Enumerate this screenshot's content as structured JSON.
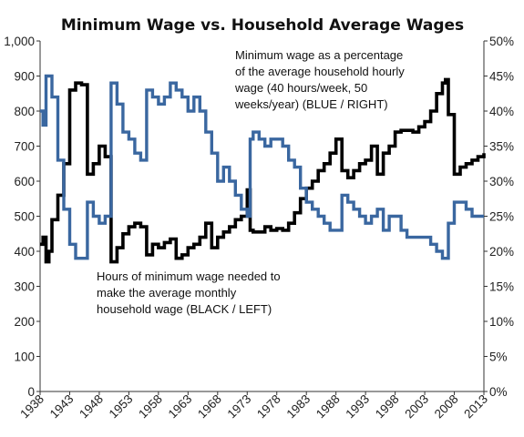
{
  "chart_data": {
    "type": "line",
    "title": "Minimum Wage vs. Household Average Wages",
    "xlabel": "",
    "ylabel_left": "",
    "ylabel_right": "",
    "xlim": [
      1938,
      2013
    ],
    "ylim_left": [
      0,
      1000
    ],
    "ylim_right": [
      0,
      0.5
    ],
    "grid": false,
    "legend": "none",
    "x_ticks": [
      "1938",
      "1943",
      "1948",
      "1953",
      "1958",
      "1963",
      "1968",
      "1973",
      "1978",
      "1983",
      "1988",
      "1993",
      "1998",
      "2003",
      "2008",
      "2013"
    ],
    "y_left_ticks": [
      "0",
      "100",
      "200",
      "300",
      "400",
      "500",
      "600",
      "700",
      "800",
      "900",
      "1,000"
    ],
    "y_right_ticks": [
      "0%",
      "5%",
      "10%",
      "15%",
      "20%",
      "25%",
      "30%",
      "35%",
      "40%",
      "45%",
      "50%"
    ],
    "annotations": {
      "blue": [
        "Minimum wage as a percentage",
        "of the average household hourly",
        "wage (40 hours/week, 50",
        "weeks/year) (BLUE / RIGHT)"
      ],
      "black": [
        "Hours of minimum wage needed to",
        "make the average monthly",
        "household wage (BLACK / LEFT)"
      ]
    },
    "series": [
      {
        "axis": "left",
        "color": "#000000",
        "x": [
          1938,
          1938.5,
          1939,
          1939.5,
          1940,
          1941,
          1942,
          1943,
          1944,
          1945,
          1946,
          1947,
          1948,
          1949,
          1950,
          1951,
          1952,
          1953,
          1954,
          1955,
          1956,
          1957,
          1958,
          1959,
          1960,
          1961,
          1962,
          1963,
          1964,
          1965,
          1966,
          1967,
          1968,
          1969,
          1970,
          1971,
          1972,
          1973,
          1973.5,
          1974,
          1975,
          1976,
          1977,
          1978,
          1979,
          1980,
          1981,
          1982,
          1983,
          1984,
          1985,
          1986,
          1987,
          1988,
          1989,
          1990,
          1991,
          1992,
          1993,
          1994,
          1995,
          1996,
          1997,
          1998,
          1999,
          2000,
          2001,
          2002,
          2003,
          2004,
          2005,
          2006,
          2006.5,
          2007,
          2008,
          2009,
          2010,
          2011,
          2012,
          2013
        ],
        "values": [
          420,
          440,
          370,
          400,
          490,
          560,
          650,
          860,
          880,
          875,
          620,
          650,
          700,
          670,
          370,
          410,
          450,
          470,
          480,
          470,
          390,
          420,
          410,
          425,
          435,
          380,
          390,
          410,
          420,
          440,
          480,
          410,
          440,
          455,
          470,
          490,
          500,
          575,
          460,
          455,
          455,
          470,
          460,
          465,
          460,
          480,
          510,
          550,
          580,
          600,
          630,
          650,
          680,
          720,
          630,
          610,
          630,
          650,
          660,
          700,
          620,
          680,
          700,
          740,
          745,
          745,
          740,
          755,
          770,
          800,
          850,
          880,
          890,
          790,
          620,
          640,
          650,
          660,
          670,
          680
        ]
      },
      {
        "axis": "right",
        "color": "#3a67a0",
        "x": [
          1938,
          1938.5,
          1939,
          1940,
          1941,
          1942,
          1943,
          1944,
          1945,
          1946,
          1947,
          1948,
          1949,
          1950,
          1951,
          1952,
          1953,
          1954,
          1955,
          1956,
          1957,
          1958,
          1959,
          1960,
          1961,
          1962,
          1963,
          1964,
          1965,
          1966,
          1967,
          1968,
          1969,
          1970,
          1971,
          1972,
          1973,
          1973.5,
          1974,
          1975,
          1976,
          1977,
          1978,
          1979,
          1980,
          1981,
          1982,
          1983,
          1984,
          1985,
          1986,
          1987,
          1988,
          1989,
          1990,
          1991,
          1992,
          1993,
          1994,
          1995,
          1996,
          1997,
          1998,
          1999,
          2000,
          2001,
          2002,
          2003,
          2004,
          2005,
          2006,
          2006.5,
          2007,
          2008,
          2009,
          2010,
          2011,
          2012,
          2013
        ],
        "values": [
          0.4,
          0.38,
          0.45,
          0.42,
          0.33,
          0.26,
          0.21,
          0.19,
          0.19,
          0.27,
          0.25,
          0.24,
          0.25,
          0.44,
          0.41,
          0.37,
          0.36,
          0.34,
          0.33,
          0.43,
          0.42,
          0.41,
          0.42,
          0.44,
          0.43,
          0.42,
          0.4,
          0.42,
          0.4,
          0.37,
          0.34,
          0.3,
          0.32,
          0.3,
          0.28,
          0.26,
          0.25,
          0.36,
          0.37,
          0.36,
          0.35,
          0.36,
          0.36,
          0.35,
          0.33,
          0.32,
          0.29,
          0.27,
          0.26,
          0.25,
          0.24,
          0.23,
          0.23,
          0.28,
          0.27,
          0.26,
          0.25,
          0.24,
          0.25,
          0.26,
          0.23,
          0.25,
          0.25,
          0.23,
          0.22,
          0.22,
          0.22,
          0.22,
          0.21,
          0.2,
          0.19,
          0.19,
          0.24,
          0.27,
          0.27,
          0.26,
          0.25,
          0.25,
          0.25
        ]
      }
    ]
  }
}
